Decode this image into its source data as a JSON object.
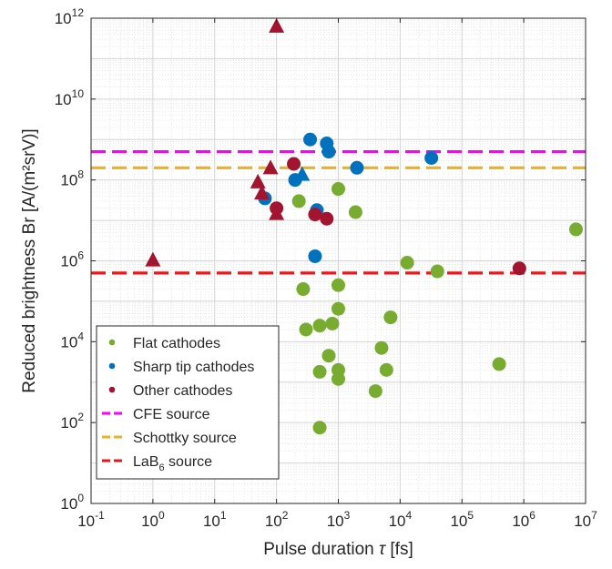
{
  "chart_data": {
    "type": "scatter",
    "xscale": "log",
    "yscale": "log",
    "xlim": [
      0.1,
      10000000
    ],
    "ylim": [
      1,
      1000000000000
    ],
    "xlabel_text": "Pulse duration ",
    "xlabel_symbol": "τ",
    "xlabel_unit": " [fs]",
    "ylabel": "Reduced brightness Br [A/(m²srV)]",
    "grid": true,
    "legend_position": "bottom-left",
    "x_ticks": [
      {
        "value": 0.1,
        "base": "10",
        "exp": "-1"
      },
      {
        "value": 1,
        "base": "10",
        "exp": "0"
      },
      {
        "value": 10,
        "base": "10",
        "exp": "1"
      },
      {
        "value": 100,
        "base": "10",
        "exp": "2"
      },
      {
        "value": 1000,
        "base": "10",
        "exp": "3"
      },
      {
        "value": 10000,
        "base": "10",
        "exp": "4"
      },
      {
        "value": 100000,
        "base": "10",
        "exp": "5"
      },
      {
        "value": 1000000,
        "base": "10",
        "exp": "6"
      },
      {
        "value": 10000000,
        "base": "10",
        "exp": "7"
      }
    ],
    "y_ticks": [
      {
        "value": 1,
        "base": "10",
        "exp": "0"
      },
      {
        "value": 100,
        "base": "10",
        "exp": "2"
      },
      {
        "value": 10000,
        "base": "10",
        "exp": "4"
      },
      {
        "value": 1000000,
        "base": "10",
        "exp": "6"
      },
      {
        "value": 100000000,
        "base": "10",
        "exp": "8"
      },
      {
        "value": 10000000000,
        "base": "10",
        "exp": "10"
      },
      {
        "value": 1000000000000,
        "base": "10",
        "exp": "12"
      }
    ],
    "series": [
      {
        "name": "Flat cathodes",
        "color": "#77ac30",
        "points": [
          {
            "x": 230,
            "y": 30000000,
            "marker": "circle"
          },
          {
            "x": 1000,
            "y": 60000000,
            "marker": "circle"
          },
          {
            "x": 1900,
            "y": 16000000,
            "marker": "circle"
          },
          {
            "x": 13000,
            "y": 900000,
            "marker": "circle"
          },
          {
            "x": 40000,
            "y": 550000,
            "marker": "circle"
          },
          {
            "x": 7000000,
            "y": 6000000,
            "marker": "circle"
          },
          {
            "x": 270,
            "y": 200000,
            "marker": "circle"
          },
          {
            "x": 1000,
            "y": 250000,
            "marker": "circle"
          },
          {
            "x": 1000,
            "y": 65000,
            "marker": "circle"
          },
          {
            "x": 7000,
            "y": 40000,
            "marker": "circle"
          },
          {
            "x": 300,
            "y": 20000,
            "marker": "circle"
          },
          {
            "x": 500,
            "y": 25000,
            "marker": "circle"
          },
          {
            "x": 800,
            "y": 28000,
            "marker": "circle"
          },
          {
            "x": 5000,
            "y": 7000,
            "marker": "circle"
          },
          {
            "x": 700,
            "y": 4500,
            "marker": "circle"
          },
          {
            "x": 500,
            "y": 1800,
            "marker": "circle"
          },
          {
            "x": 1000,
            "y": 2000,
            "marker": "circle"
          },
          {
            "x": 1000,
            "y": 1200,
            "marker": "circle"
          },
          {
            "x": 6000,
            "y": 2000,
            "marker": "circle"
          },
          {
            "x": 400000,
            "y": 2800,
            "marker": "circle"
          },
          {
            "x": 4000,
            "y": 600,
            "marker": "circle"
          },
          {
            "x": 500,
            "y": 75,
            "marker": "circle"
          }
        ]
      },
      {
        "name": "Sharp tip cathodes",
        "color": "#0072bd",
        "points": [
          {
            "x": 350,
            "y": 1000000000,
            "marker": "circle"
          },
          {
            "x": 650,
            "y": 800000000,
            "marker": "circle"
          },
          {
            "x": 700,
            "y": 500000000,
            "marker": "circle"
          },
          {
            "x": 2000,
            "y": 200000000,
            "marker": "circle"
          },
          {
            "x": 32000,
            "y": 350000000,
            "marker": "circle"
          },
          {
            "x": 200,
            "y": 100000000,
            "marker": "circle"
          },
          {
            "x": 260,
            "y": 130000000,
            "marker": "triangle"
          },
          {
            "x": 450,
            "y": 18000000,
            "marker": "circle"
          },
          {
            "x": 65,
            "y": 35000000,
            "marker": "circle"
          },
          {
            "x": 420,
            "y": 1300000,
            "marker": "circle"
          }
        ]
      },
      {
        "name": "Other cathodes",
        "color": "#a2142f",
        "points": [
          {
            "x": 100,
            "y": 600000000000,
            "marker": "triangle"
          },
          {
            "x": 190,
            "y": 250000000,
            "marker": "circle"
          },
          {
            "x": 80,
            "y": 190000000,
            "marker": "triangle"
          },
          {
            "x": 50,
            "y": 85000000,
            "marker": "triangle"
          },
          {
            "x": 58,
            "y": 45000000,
            "marker": "triangle"
          },
          {
            "x": 100,
            "y": 20000000,
            "marker": "circle"
          },
          {
            "x": 100,
            "y": 14000000,
            "marker": "triangle"
          },
          {
            "x": 420,
            "y": 14000000,
            "marker": "circle"
          },
          {
            "x": 650,
            "y": 11000000,
            "marker": "circle"
          },
          {
            "x": 1,
            "y": 1000000,
            "marker": "triangle"
          },
          {
            "x": 850000,
            "y": 650000,
            "marker": "circle"
          }
        ]
      }
    ],
    "reference_lines": [
      {
        "name": "CFE source",
        "y": 500000000,
        "color": "#ff00ff"
      },
      {
        "name": "Schottky source",
        "y": 200000000,
        "color": "#edb120"
      },
      {
        "name": "LaB₆ source",
        "y": 500000,
        "color": "#e8191c"
      }
    ],
    "legend": [
      {
        "label": "Flat cathodes",
        "kind": "dot",
        "color": "#77ac30"
      },
      {
        "label": "Sharp tip cathodes",
        "kind": "dot",
        "color": "#0072bd"
      },
      {
        "label": "Other cathodes",
        "kind": "dot",
        "color": "#a2142f"
      },
      {
        "label": "CFE source",
        "kind": "dash",
        "color": "#ff00ff"
      },
      {
        "label": "Schottky source",
        "kind": "dash",
        "color": "#edb120"
      },
      {
        "label": "LaB",
        "sub": "6",
        "suffix": " source",
        "kind": "dash",
        "color": "#e8191c"
      }
    ]
  }
}
